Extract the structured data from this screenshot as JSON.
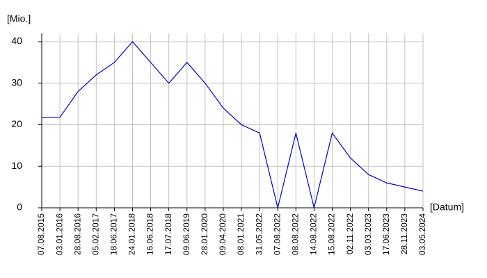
{
  "chart_data": {
    "type": "line",
    "y_label": "[Mio.]",
    "x_label": "[Datum]",
    "categories": [
      "07.08.2015",
      "03.01.2016",
      "28.08.2016",
      "05.02.2017",
      "18.06.2017",
      "24.01.2018",
      "16.06.2018",
      "17.07.2018",
      "09.06.2019",
      "28.01.2020",
      "09.04.2020",
      "08.01.2021",
      "31.05.2022",
      "07.08.2022",
      "08.08.2022",
      "14.08.2022",
      "15.08.2022",
      "02.11.2022",
      "03.03.2023",
      "17.06.2023",
      "28.11.2023",
      "03.05.2024"
    ],
    "series": [
      {
        "color": "#0000cc",
        "values": [
          21.7,
          21.8,
          28,
          32,
          35,
          40,
          35,
          30,
          35,
          30,
          24,
          20,
          18,
          0,
          18,
          0,
          18,
          12,
          8,
          6,
          5,
          4
        ]
      }
    ],
    "ylim": [
      0,
      42
    ],
    "yticks": [
      0,
      10,
      20,
      30,
      40
    ],
    "grid": true
  }
}
